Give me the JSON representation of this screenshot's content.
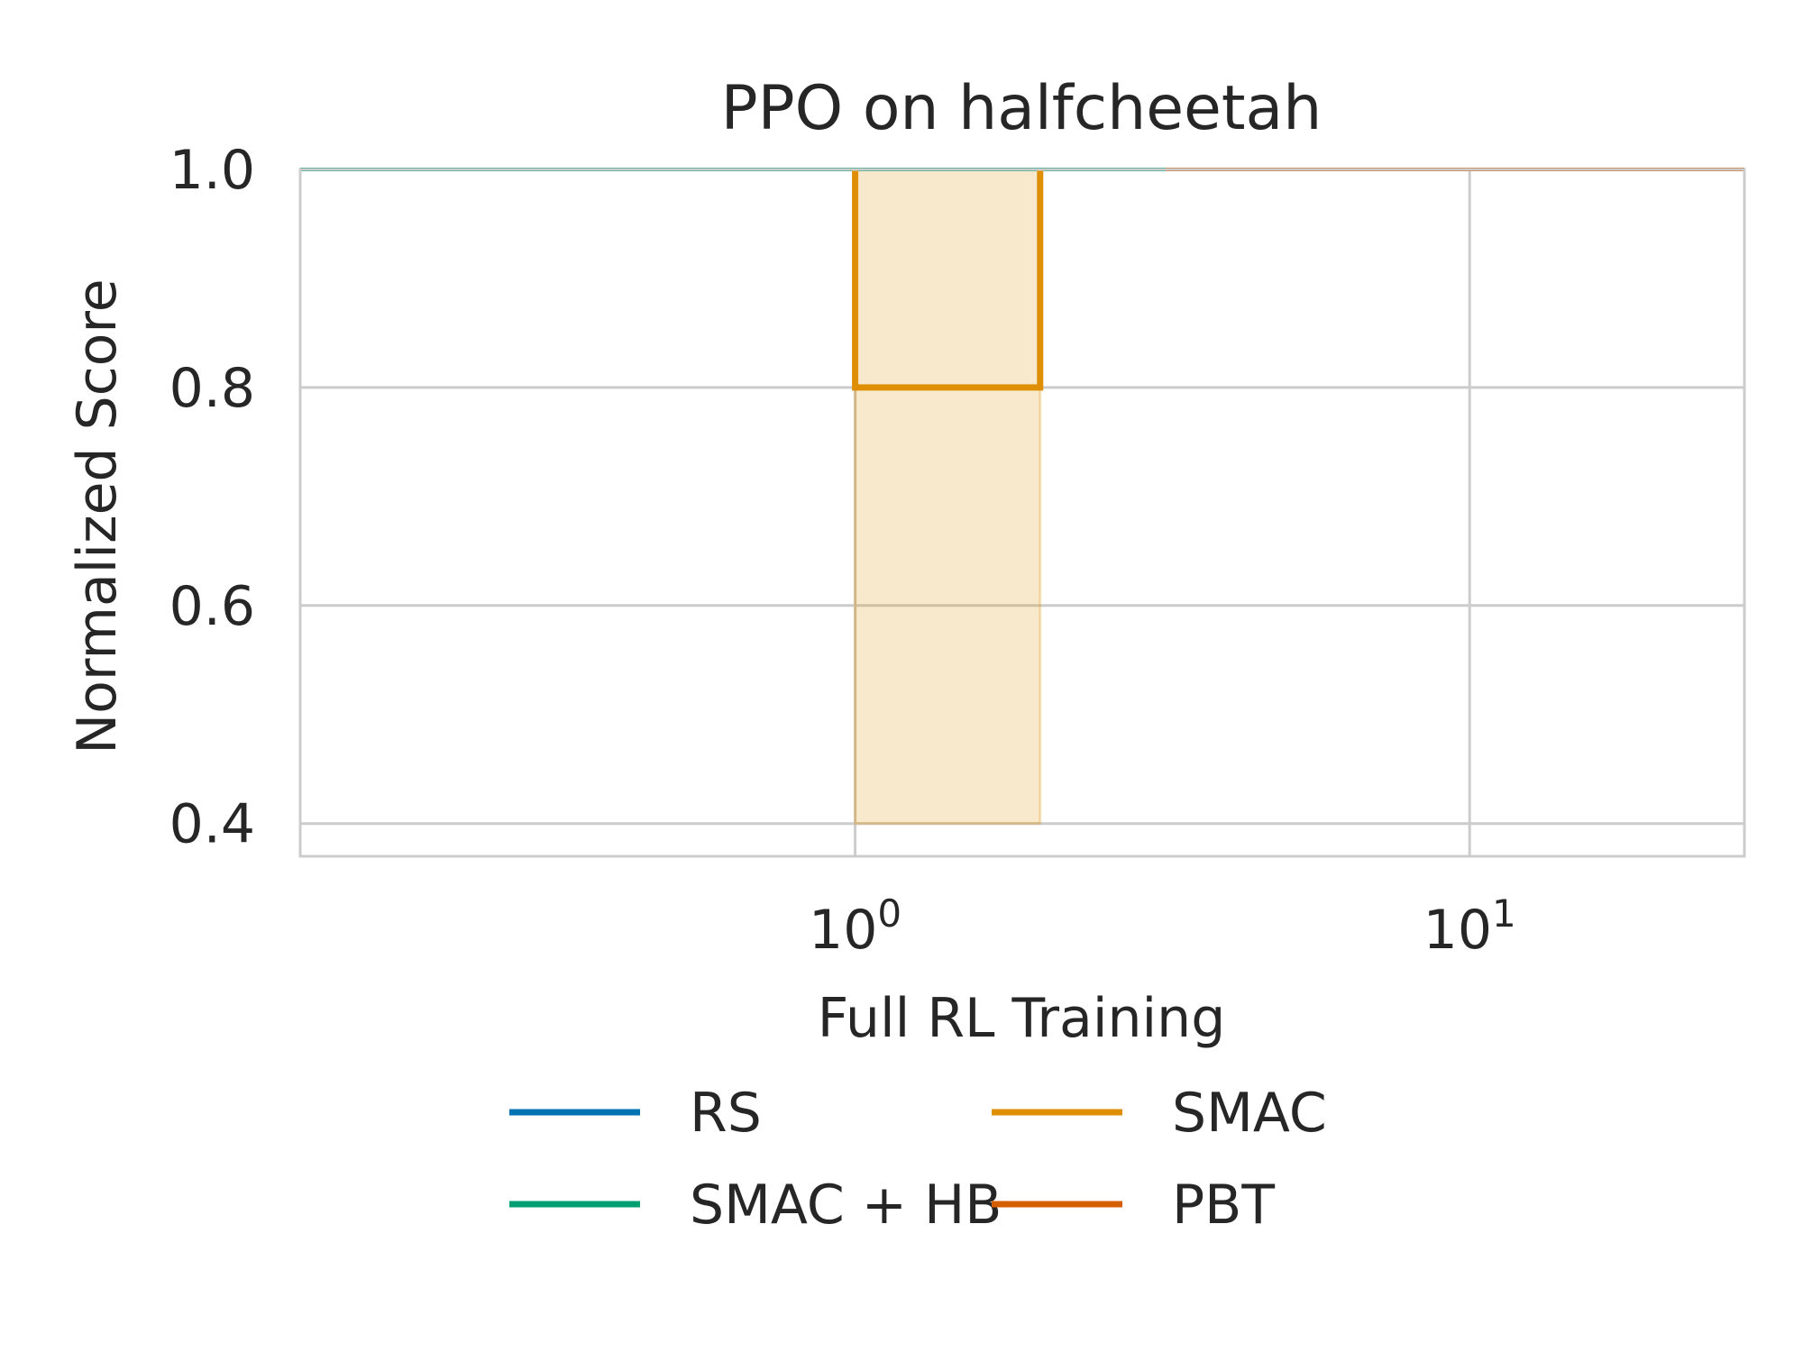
{
  "chart_data": {
    "type": "line",
    "title": "PPO on halfcheetah",
    "xlabel": "Full RL Training",
    "ylabel": "Normalized Score",
    "xscale": "log",
    "xlim": [
      0.125,
      28
    ],
    "ylim": [
      0.37,
      1.0
    ],
    "grid": true,
    "legend_placement": "bottom-center",
    "x_ticks": [
      {
        "value": 1,
        "base": "10",
        "exp": "0"
      },
      {
        "value": 10,
        "base": "10",
        "exp": "1"
      }
    ],
    "y_ticks": [
      {
        "value": 0.4,
        "label": "0.4"
      },
      {
        "value": 0.6,
        "label": "0.6"
      },
      {
        "value": 0.8,
        "label": "0.8"
      },
      {
        "value": 1.0,
        "label": "1.0"
      }
    ],
    "series": [
      {
        "name": "RS",
        "color": "#0173b2",
        "x": [
          0.125,
          3.2
        ],
        "y": [
          1.0,
          1.0
        ]
      },
      {
        "name": "SMAC",
        "color": "#de8f05",
        "x": [
          1.0,
          1.0,
          2.0,
          2.0
        ],
        "y": [
          1.0,
          0.8,
          0.8,
          1.0
        ],
        "band": {
          "x": [
            1.0,
            2.0
          ],
          "lower": [
            0.4,
            0.4
          ],
          "upper": [
            1.0,
            1.0
          ]
        }
      },
      {
        "name": "SMAC + HB",
        "color": "#029e73",
        "x": [
          0.125,
          3.2
        ],
        "y": [
          1.0,
          1.0
        ]
      },
      {
        "name": "PBT",
        "color": "#d55e00",
        "x": [
          3.2,
          28
        ],
        "y": [
          1.0,
          1.0
        ]
      }
    ]
  }
}
